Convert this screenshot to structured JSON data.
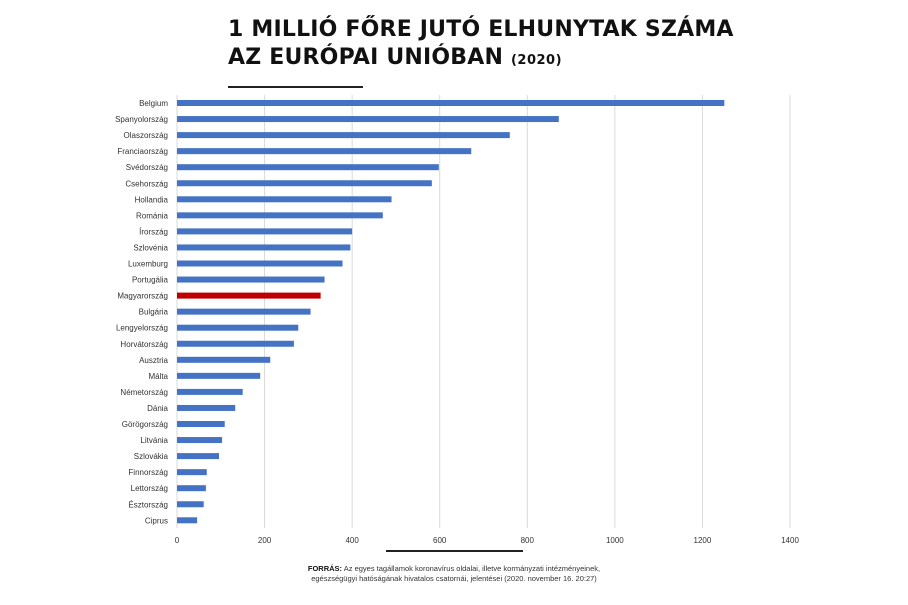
{
  "title": {
    "line1": "1 MILLIÓ FŐRE JUTÓ ELHUNYTAK SZÁMA",
    "line2": "AZ EURÓPAI UNIÓBAN",
    "year": "(2020)"
  },
  "source": {
    "label": "FORRÁS:",
    "text1": " Az egyes tagállamok koronavírus oldalai, illetve kormányzati intézményeinek,",
    "text2": "egészségügyi hatóságának hivatalos csatornái, jelentései (2020. november 16. 20:27)"
  },
  "colors": {
    "bar": "#4472c4",
    "highlight": "#c00000",
    "grid": "#d9d9d9"
  },
  "chart_data": {
    "type": "bar",
    "orientation": "horizontal",
    "categories": [
      "Belgium",
      "Spanyolország",
      "Olaszország",
      "Franciaország",
      "Svédország",
      "Csehország",
      "Hollandia",
      "Románia",
      "Írország",
      "Szlovénia",
      "Luxemburg",
      "Portugália",
      "Magyarország",
      "Bulgária",
      "Lengyelország",
      "Horvátország",
      "Ausztria",
      "Málta",
      "Németország",
      "Dánia",
      "Görögország",
      "Litvánia",
      "Szlovákia",
      "Finnország",
      "Lettország",
      "Észtország",
      "Ciprus"
    ],
    "values": [
      1250,
      872,
      760,
      672,
      598,
      582,
      490,
      470,
      400,
      396,
      378,
      337,
      328,
      305,
      277,
      267,
      213,
      190,
      150,
      133,
      109,
      103,
      96,
      68,
      66,
      61,
      46
    ],
    "highlight": "Magyarország",
    "xlim": [
      0,
      1400
    ],
    "xticks": [
      0,
      200,
      400,
      600,
      800,
      1000,
      1200,
      1400
    ],
    "grid": "vertical",
    "title": "1 MILLIÓ FŐRE JUTÓ ELHUNYTAK SZÁMA AZ EURÓPAI UNIÓBAN (2020)",
    "xlabel": "",
    "ylabel": ""
  }
}
